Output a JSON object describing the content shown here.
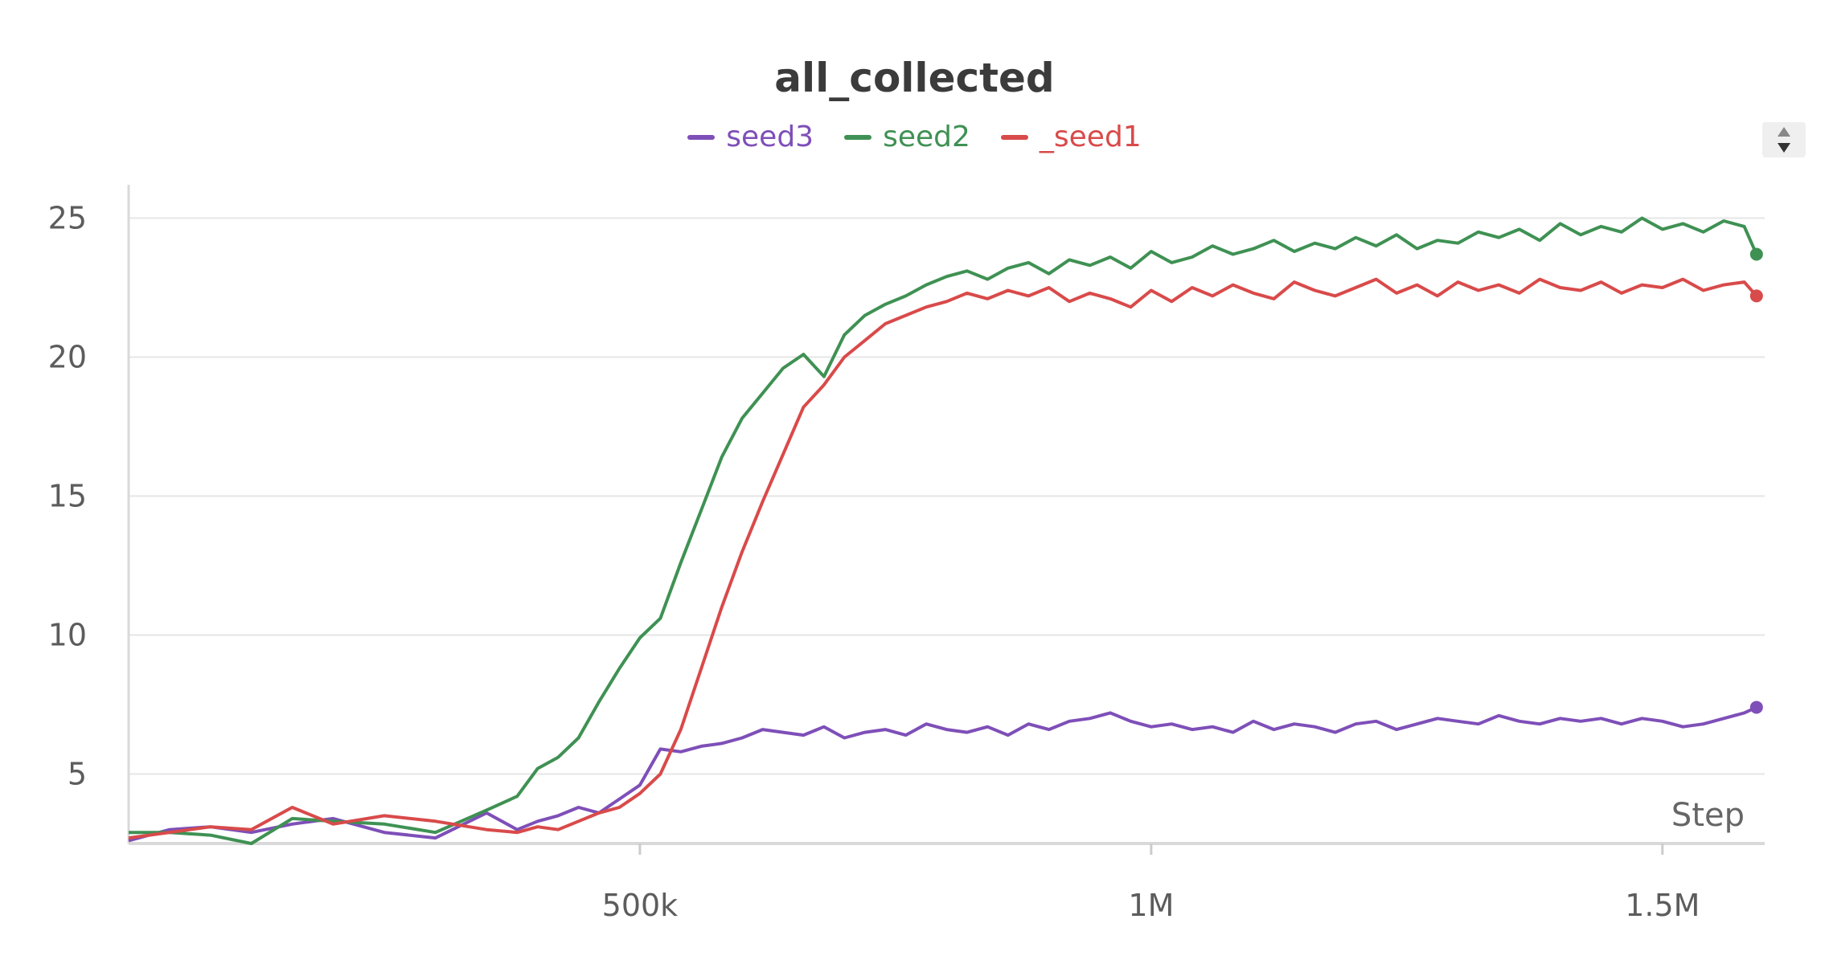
{
  "chart_data": {
    "type": "line",
    "title": "all_collected",
    "xlabel": "Step",
    "ylabel": "",
    "xlim": [
      0,
      1600000
    ],
    "ylim": [
      2.5,
      26.2
    ],
    "x_ticks": [
      {
        "value": 500000,
        "label": "500k"
      },
      {
        "value": 1000000,
        "label": "1M"
      },
      {
        "value": 1500000,
        "label": "1.5M"
      }
    ],
    "y_ticks": [
      {
        "value": 5,
        "label": "5"
      },
      {
        "value": 10,
        "label": "10"
      },
      {
        "value": 15,
        "label": "15"
      },
      {
        "value": 20,
        "label": "20"
      },
      {
        "value": 25,
        "label": "25"
      }
    ],
    "grid": true,
    "legend_position": "top-center",
    "series": [
      {
        "name": "seed3",
        "color": "#7e4fb8",
        "x": [
          0,
          40000,
          80000,
          120000,
          160000,
          200000,
          250000,
          300000,
          350000,
          380000,
          400000,
          420000,
          440000,
          460000,
          480000,
          500000,
          520000,
          540000,
          560000,
          580000,
          600000,
          620000,
          640000,
          660000,
          680000,
          700000,
          720000,
          740000,
          760000,
          780000,
          800000,
          820000,
          840000,
          860000,
          880000,
          900000,
          920000,
          940000,
          960000,
          980000,
          1000000,
          1020000,
          1040000,
          1060000,
          1080000,
          1100000,
          1120000,
          1140000,
          1160000,
          1180000,
          1200000,
          1220000,
          1240000,
          1260000,
          1280000,
          1300000,
          1320000,
          1340000,
          1360000,
          1380000,
          1400000,
          1420000,
          1440000,
          1460000,
          1480000,
          1500000,
          1520000,
          1540000,
          1560000,
          1580000,
          1592000
        ],
        "y": [
          2.6,
          3.0,
          3.1,
          2.9,
          3.2,
          3.4,
          2.9,
          2.7,
          3.6,
          3.0,
          3.3,
          3.5,
          3.8,
          3.6,
          4.1,
          4.6,
          5.9,
          5.8,
          6.0,
          6.1,
          6.3,
          6.6,
          6.5,
          6.4,
          6.7,
          6.3,
          6.5,
          6.6,
          6.4,
          6.8,
          6.6,
          6.5,
          6.7,
          6.4,
          6.8,
          6.6,
          6.9,
          7.0,
          7.2,
          6.9,
          6.7,
          6.8,
          6.6,
          6.7,
          6.5,
          6.9,
          6.6,
          6.8,
          6.7,
          6.5,
          6.8,
          6.9,
          6.6,
          6.8,
          7.0,
          6.9,
          6.8,
          7.1,
          6.9,
          6.8,
          7.0,
          6.9,
          7.0,
          6.8,
          7.0,
          6.9,
          6.7,
          6.8,
          7.0,
          7.2,
          7.4
        ]
      },
      {
        "name": "seed2",
        "color": "#3f9153",
        "x": [
          0,
          40000,
          80000,
          120000,
          160000,
          200000,
          250000,
          300000,
          350000,
          380000,
          400000,
          420000,
          440000,
          460000,
          480000,
          500000,
          520000,
          540000,
          560000,
          580000,
          600000,
          620000,
          640000,
          660000,
          680000,
          700000,
          720000,
          740000,
          760000,
          780000,
          800000,
          820000,
          840000,
          860000,
          880000,
          900000,
          920000,
          940000,
          960000,
          980000,
          1000000,
          1020000,
          1040000,
          1060000,
          1080000,
          1100000,
          1120000,
          1140000,
          1160000,
          1180000,
          1200000,
          1220000,
          1240000,
          1260000,
          1280000,
          1300000,
          1320000,
          1340000,
          1360000,
          1380000,
          1400000,
          1420000,
          1440000,
          1460000,
          1480000,
          1500000,
          1520000,
          1540000,
          1560000,
          1580000,
          1592000
        ],
        "y": [
          2.9,
          2.9,
          2.8,
          2.5,
          3.4,
          3.3,
          3.2,
          2.9,
          3.7,
          4.2,
          5.2,
          5.6,
          6.3,
          7.6,
          8.8,
          9.9,
          10.6,
          12.6,
          14.5,
          16.4,
          17.8,
          18.7,
          19.6,
          20.1,
          19.3,
          20.8,
          21.5,
          21.9,
          22.2,
          22.6,
          22.9,
          23.1,
          22.8,
          23.2,
          23.4,
          23.0,
          23.5,
          23.3,
          23.6,
          23.2,
          23.8,
          23.4,
          23.6,
          24.0,
          23.7,
          23.9,
          24.2,
          23.8,
          24.1,
          23.9,
          24.3,
          24.0,
          24.4,
          23.9,
          24.2,
          24.1,
          24.5,
          24.3,
          24.6,
          24.2,
          24.8,
          24.4,
          24.7,
          24.5,
          25.0,
          24.6,
          24.8,
          24.5,
          24.9,
          24.7,
          23.7
        ]
      },
      {
        "name": "_seed1",
        "color": "#d94a4a",
        "x": [
          0,
          40000,
          80000,
          120000,
          160000,
          200000,
          250000,
          300000,
          350000,
          380000,
          400000,
          420000,
          440000,
          460000,
          480000,
          500000,
          520000,
          540000,
          560000,
          580000,
          600000,
          620000,
          640000,
          660000,
          680000,
          700000,
          720000,
          740000,
          760000,
          780000,
          800000,
          820000,
          840000,
          860000,
          880000,
          900000,
          920000,
          940000,
          960000,
          980000,
          1000000,
          1020000,
          1040000,
          1060000,
          1080000,
          1100000,
          1120000,
          1140000,
          1160000,
          1180000,
          1200000,
          1220000,
          1240000,
          1260000,
          1280000,
          1300000,
          1320000,
          1340000,
          1360000,
          1380000,
          1400000,
          1420000,
          1440000,
          1460000,
          1480000,
          1500000,
          1520000,
          1540000,
          1560000,
          1580000,
          1592000
        ],
        "y": [
          2.7,
          2.9,
          3.1,
          3.0,
          3.8,
          3.2,
          3.5,
          3.3,
          3.0,
          2.9,
          3.1,
          3.0,
          3.3,
          3.6,
          3.8,
          4.3,
          5.0,
          6.6,
          8.8,
          11.0,
          13.0,
          14.8,
          16.5,
          18.2,
          19.0,
          20.0,
          20.6,
          21.2,
          21.5,
          21.8,
          22.0,
          22.3,
          22.1,
          22.4,
          22.2,
          22.5,
          22.0,
          22.3,
          22.1,
          21.8,
          22.4,
          22.0,
          22.5,
          22.2,
          22.6,
          22.3,
          22.1,
          22.7,
          22.4,
          22.2,
          22.5,
          22.8,
          22.3,
          22.6,
          22.2,
          22.7,
          22.4,
          22.6,
          22.3,
          22.8,
          22.5,
          22.4,
          22.7,
          22.3,
          22.6,
          22.5,
          22.8,
          22.4,
          22.6,
          22.7,
          22.2
        ]
      }
    ]
  }
}
